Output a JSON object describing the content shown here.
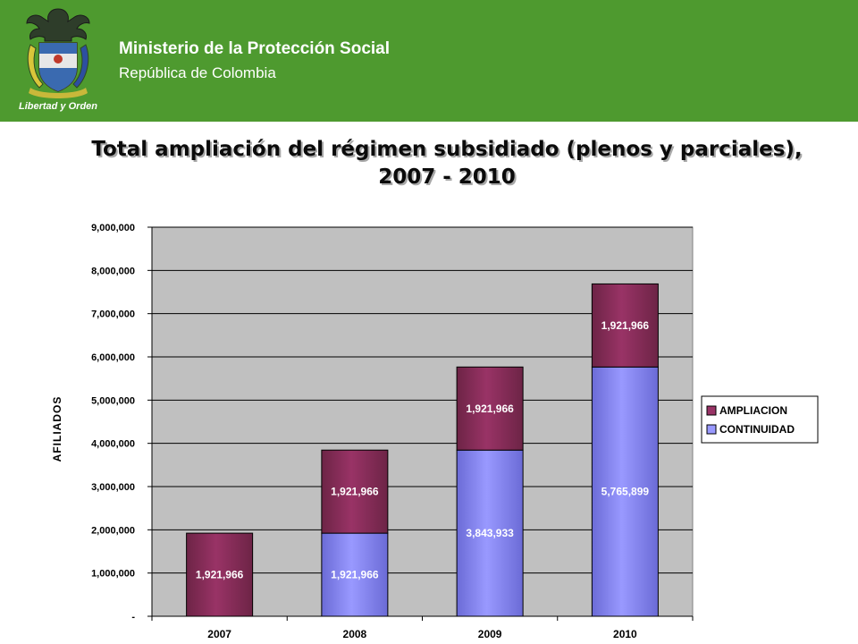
{
  "header": {
    "ministry": "Ministerio de la Protección Social",
    "republic": "República de Colombia",
    "motto": "Libertad y Orden",
    "background": "#4e9a2f",
    "crest_icon": "colombia-coat-of-arms-icon"
  },
  "title": {
    "line1": "Total ampliación del régimen subsidiado (plenos y parciales),",
    "line2": "2007 - 2010"
  },
  "chart_data": {
    "type": "bar",
    "stacked": true,
    "title": "Total ampliación del régimen subsidiado (plenos y parciales), 2007 - 2010",
    "xlabel": "",
    "ylabel": "AFILIADOS",
    "categories": [
      "2007",
      "2008",
      "2009",
      "2010"
    ],
    "ylim": [
      0,
      9000000
    ],
    "yticks": [
      "-",
      "1,000,000",
      "2,000,000",
      "3,000,000",
      "4,000,000",
      "5,000,000",
      "6,000,000",
      "7,000,000",
      "8,000,000",
      "9,000,000"
    ],
    "series": [
      {
        "name": "CONTINUIDAD",
        "color": "#9999ff",
        "values": [
          0,
          1921966,
          3843933,
          5765899
        ],
        "labels": [
          "",
          "1,921,966",
          "3,843,933",
          "5,765,899"
        ]
      },
      {
        "name": "AMPLIACION",
        "color": "#993366",
        "values": [
          1921966,
          1921966,
          1921966,
          1921966
        ],
        "labels": [
          "1,921,966",
          "1,921,966",
          "1,921,966",
          "1,921,966"
        ]
      }
    ],
    "legend_entries": [
      "AMPLIACION",
      "CONTINUIDAD"
    ],
    "legend": "right",
    "grid": true,
    "plot_background": "#c0c0c0"
  }
}
